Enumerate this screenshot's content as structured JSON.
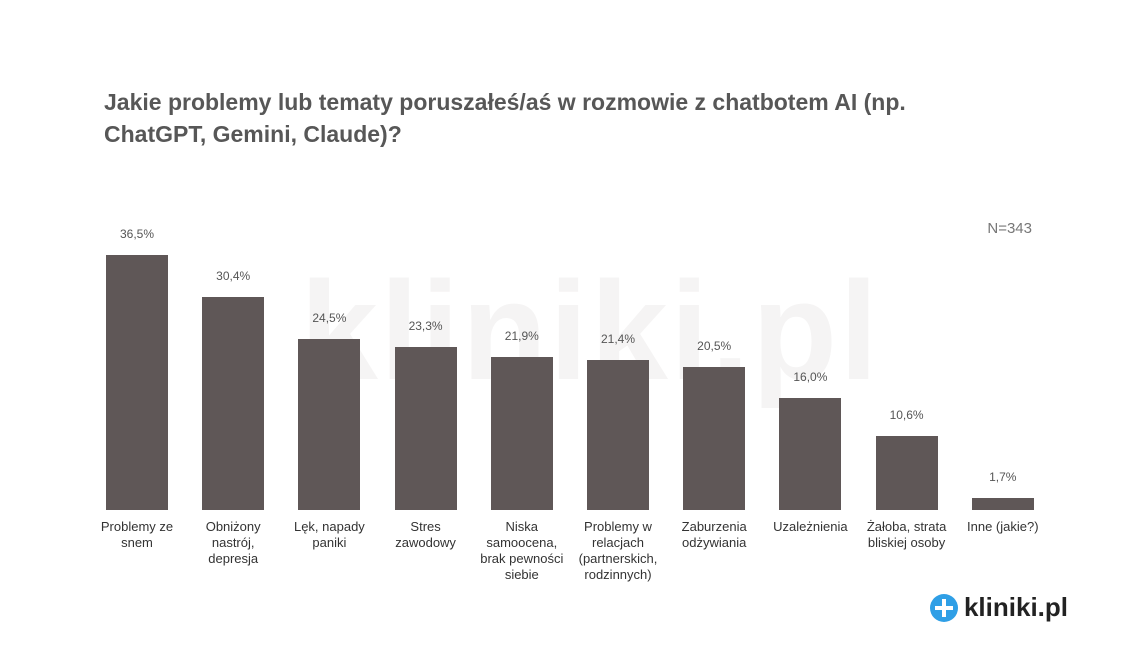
{
  "chart_data": {
    "type": "bar",
    "title": "Jakie problemy lub tematy poruszałeś/aś w rozmowie z chatbotem AI (np. ChatGPT, Gemini, Claude)?",
    "note": "N=343",
    "logo": "kliniki.pl",
    "categories": [
      "Problemy ze snem",
      "Obniżony nastrój, depresja",
      "Lęk, napady paniki",
      "Stres zawodowy",
      "Niska samoocena, brak pewności siebie",
      "Problemy w relacjach (partnerskich, rodzinnych)",
      "Zaburzenia odżywiania",
      "Uzależnienia",
      "Żałoba, strata bliskiej osoby",
      "Inne (jakie?)"
    ],
    "values": [
      36.5,
      30.4,
      24.5,
      23.3,
      21.9,
      21.4,
      20.5,
      16.0,
      10.6,
      1.7
    ],
    "value_labels": [
      "36,5%",
      "30,4%",
      "24,5%",
      "23,3%",
      "21,9%",
      "21,4%",
      "20,5%",
      "16,0%",
      "10,6%",
      "1,7%"
    ],
    "color": "#5f5757"
  }
}
